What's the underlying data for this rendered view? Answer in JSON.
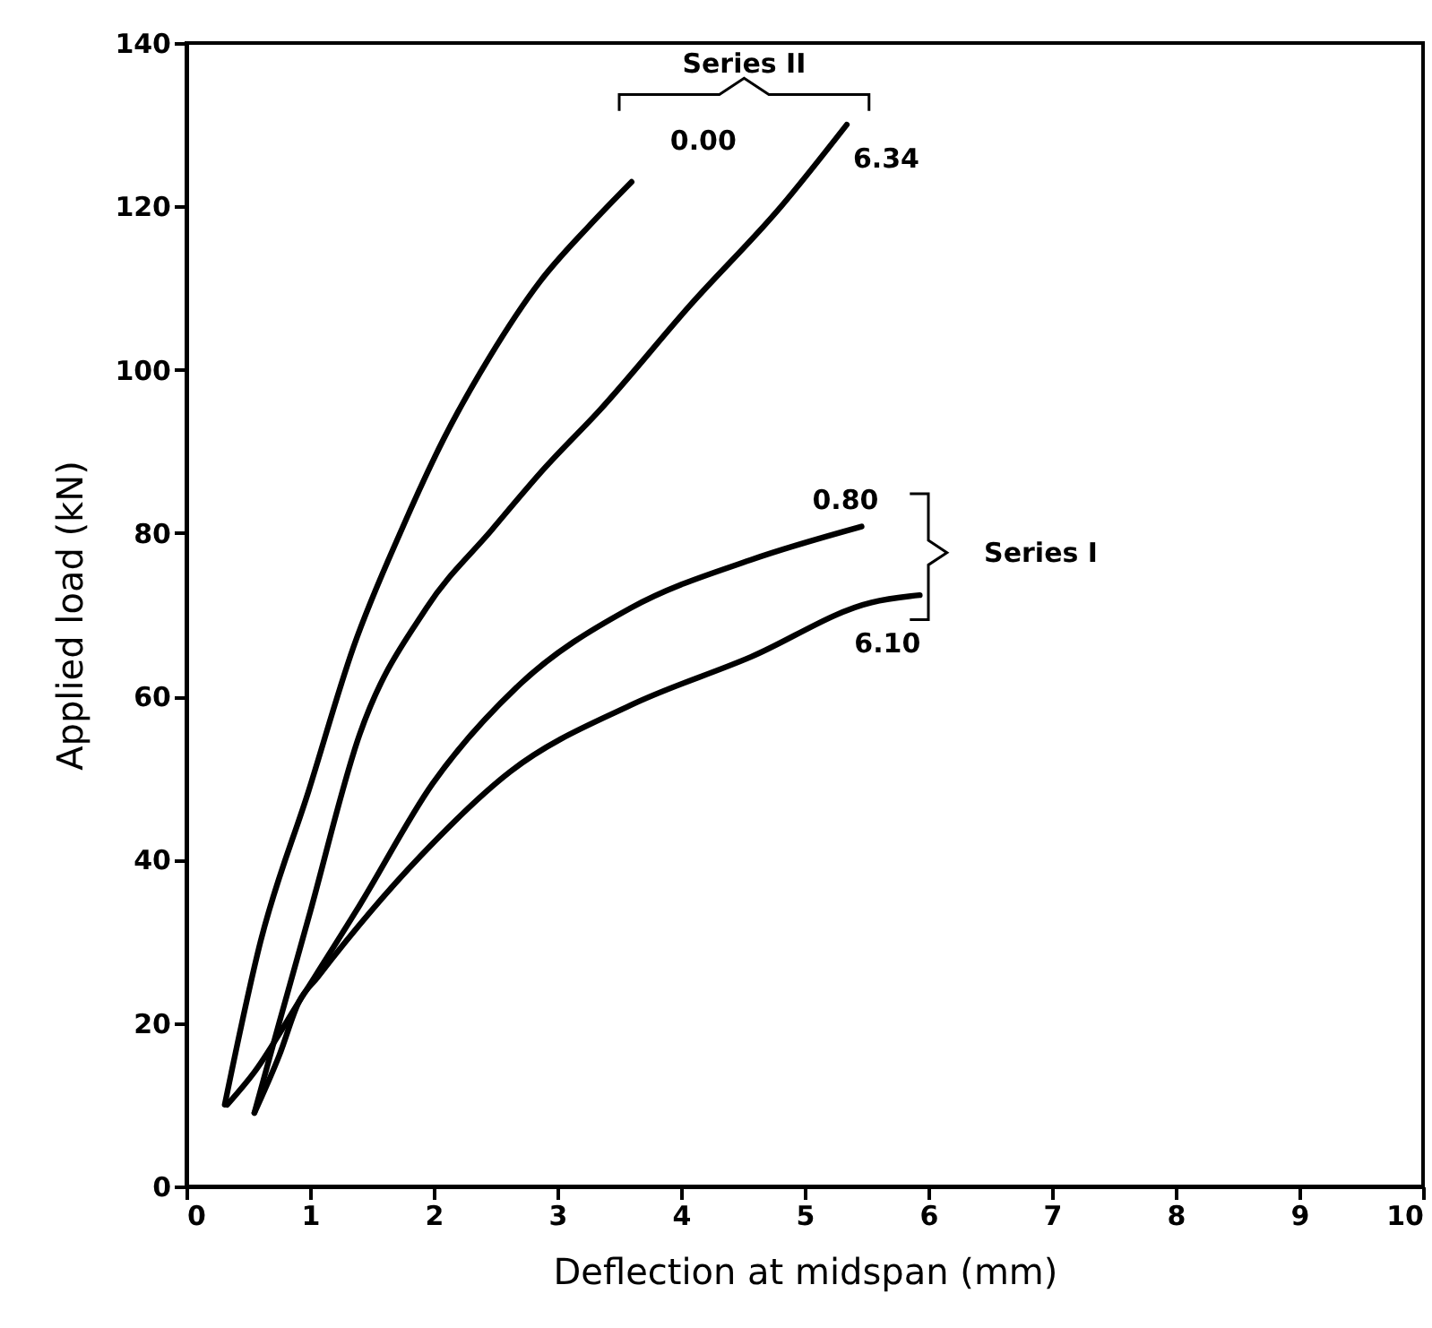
{
  "chart_data": {
    "type": "line",
    "xlabel": "Deflection at midspan (mm)",
    "ylabel": "Applied load (kN)",
    "xlim": [
      0,
      10
    ],
    "xticks": [
      0,
      1,
      2,
      3,
      4,
      5,
      6,
      7,
      8,
      9,
      10
    ],
    "ylim": [
      0,
      140
    ],
    "yticks": [
      0,
      20,
      40,
      60,
      80,
      100,
      120,
      140
    ],
    "grid": false,
    "legend": false,
    "marker": "none",
    "line_style": "solid",
    "series": [
      {
        "name": "0.00",
        "color": "#000000",
        "x": [
          0.31,
          0.6,
          0.99,
          1.35,
          1.74,
          2.08,
          2.45,
          2.86,
          3.25,
          3.6
        ],
        "values": [
          10,
          30,
          48.5,
          66,
          80.4,
          91.5,
          101.5,
          110.8,
          117.5,
          123
        ]
      },
      {
        "name": "6.34",
        "color": "#000000",
        "x": [
          0.55,
          0.75,
          0.99,
          1.4,
          1.94,
          2.47,
          2.9,
          3.34,
          4.08,
          4.81,
          5.34
        ],
        "values": [
          9,
          20,
          33,
          55.3,
          70.8,
          80.4,
          88,
          95,
          108,
          120,
          130
        ]
      },
      {
        "name": "0.80",
        "color": "#000000",
        "x": [
          0.33,
          0.55,
          0.91,
          1.4,
          1.99,
          2.67,
          3.59,
          4.56,
          5.46
        ],
        "values": [
          10,
          14,
          22.6,
          34.4,
          49.3,
          61.1,
          70.8,
          76.7,
          80.8
        ]
      },
      {
        "name": "6.10",
        "color": "#000000",
        "x": [
          0.55,
          0.75,
          0.91,
          1.06,
          1.89,
          2.62,
          3.59,
          4.56,
          5.54,
          5.93
        ],
        "values": [
          9,
          16,
          22.6,
          25.6,
          40.4,
          50.8,
          58.9,
          64.8,
          71.5,
          72.4
        ]
      }
    ],
    "annotations": [
      "Series II",
      "Series I"
    ]
  }
}
